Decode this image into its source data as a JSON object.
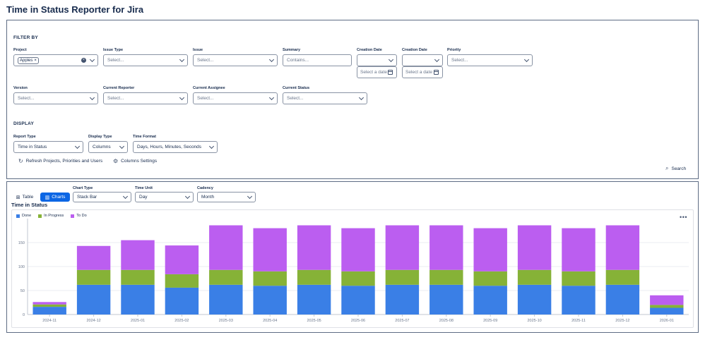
{
  "app": {
    "title": "Time in Status Reporter for Jira"
  },
  "filter": {
    "heading": "FILTER BY",
    "project": {
      "label": "Project",
      "tag": "Apples",
      "tag_remove": "×"
    },
    "issue_type": {
      "label": "Issue Type",
      "placeholder": "Select..."
    },
    "issue": {
      "label": "Issue",
      "placeholder": "Select..."
    },
    "summary": {
      "label": "Summary",
      "placeholder": "Contains..."
    },
    "creation_date_1": {
      "label": "Creation Date",
      "date_placeholder": "Select a date"
    },
    "creation_date_2": {
      "label": "Creation Date",
      "date_placeholder": "Select a date"
    },
    "priority": {
      "label": "Priority",
      "placeholder": "Select..."
    },
    "version": {
      "label": "Version",
      "placeholder": "Select..."
    },
    "current_reporter": {
      "label": "Current Reporter",
      "placeholder": "Select..."
    },
    "current_assignee": {
      "label": "Current Assignee",
      "placeholder": "Select..."
    },
    "current_status": {
      "label": "Current Status",
      "placeholder": "Select..."
    }
  },
  "display": {
    "heading": "DISPLAY",
    "report_type": {
      "label": "Report Type",
      "value": "Time in Status"
    },
    "display_type": {
      "label": "Display Type",
      "value": "Columns"
    },
    "time_format": {
      "label": "Time Format",
      "value": "Days, Hours, Minutes, Seconds"
    },
    "refresh_label": "Refresh Projects, Priorities and Users",
    "columns_settings_label": "Columns Settings",
    "search_label": "Search"
  },
  "view": {
    "table_label": "Table",
    "charts_label": "Charts",
    "chart_type": {
      "label": "Chart Type",
      "value": "Stack Bar"
    },
    "time_unit": {
      "label": "Time Unit",
      "value": "Day"
    },
    "cadency": {
      "label": "Cadency",
      "value": "Month"
    }
  },
  "colors": {
    "done": "#3a7fe6",
    "in_progress": "#86b237",
    "to_do": "#bb5ef0"
  },
  "icons": [
    "chevron-down-icon",
    "clear-icon",
    "calendar-icon",
    "refresh-icon",
    "gear-icon",
    "search-icon",
    "table-icon",
    "chart-icon",
    "more-icon"
  ],
  "chart_data": {
    "type": "bar",
    "stacked": true,
    "title": "Time in Status",
    "categories": [
      "2024-11",
      "2024-12",
      "2025-01",
      "2025-02",
      "2025-03",
      "2025-04",
      "2025-05",
      "2025-06",
      "2025-07",
      "2025-08",
      "2025-09",
      "2025-10",
      "2025-11",
      "2025-12",
      "2026-01"
    ],
    "series": [
      {
        "name": "Done",
        "values": [
          16,
          62,
          62,
          56,
          62,
          60,
          62,
          60,
          62,
          62,
          60,
          62,
          60,
          62,
          14
        ]
      },
      {
        "name": "In Progress",
        "values": [
          5,
          31,
          31,
          28,
          31,
          30,
          31,
          30,
          31,
          31,
          30,
          31,
          30,
          31,
          6
        ]
      },
      {
        "name": "To Do",
        "values": [
          5,
          50,
          62,
          60,
          93,
          90,
          93,
          90,
          93,
          93,
          90,
          93,
          90,
          93,
          20
        ]
      }
    ],
    "yticks": [
      "0",
      "50",
      "100",
      "150"
    ],
    "ylim": [
      0,
      200
    ],
    "grid": true,
    "legend": "top-left"
  }
}
